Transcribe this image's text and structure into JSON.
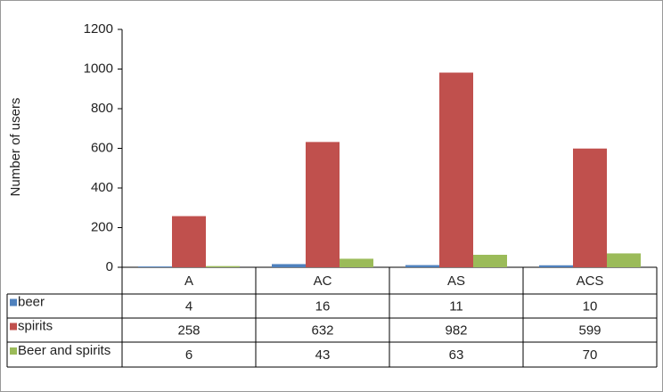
{
  "chart_data": {
    "type": "bar",
    "y_label": "Number of users",
    "categories": [
      "A",
      "AC",
      "AS",
      "ACS"
    ],
    "series": [
      {
        "name": "beer",
        "color": "#4f81bd",
        "values": [
          4,
          16,
          11,
          10
        ]
      },
      {
        "name": "spirits",
        "color": "#c0504d",
        "values": [
          258,
          632,
          982,
          599
        ]
      },
      {
        "name": "Beer and spirits",
        "color": "#9bbb59",
        "values": [
          6,
          43,
          63,
          70
        ]
      }
    ],
    "ylim": [
      0,
      1200
    ],
    "yticks": [
      0,
      200,
      400,
      600,
      800,
      1000,
      1200
    ]
  }
}
